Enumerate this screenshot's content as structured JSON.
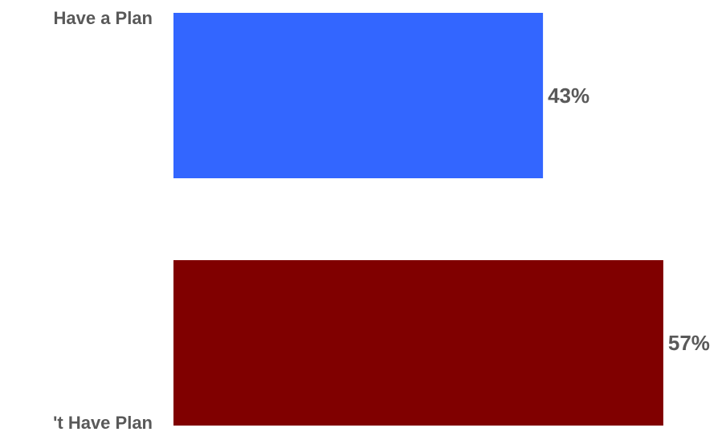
{
  "chart_data": {
    "type": "bar",
    "orientation": "horizontal",
    "categories": [
      "Have a Plan",
      "'t Have Plan"
    ],
    "values": [
      43,
      57
    ],
    "value_labels": [
      "43%",
      "57%"
    ],
    "colors": [
      "#3366ff",
      "#800000"
    ],
    "xlim": [
      0,
      100
    ],
    "grid": false,
    "legend": "none"
  }
}
